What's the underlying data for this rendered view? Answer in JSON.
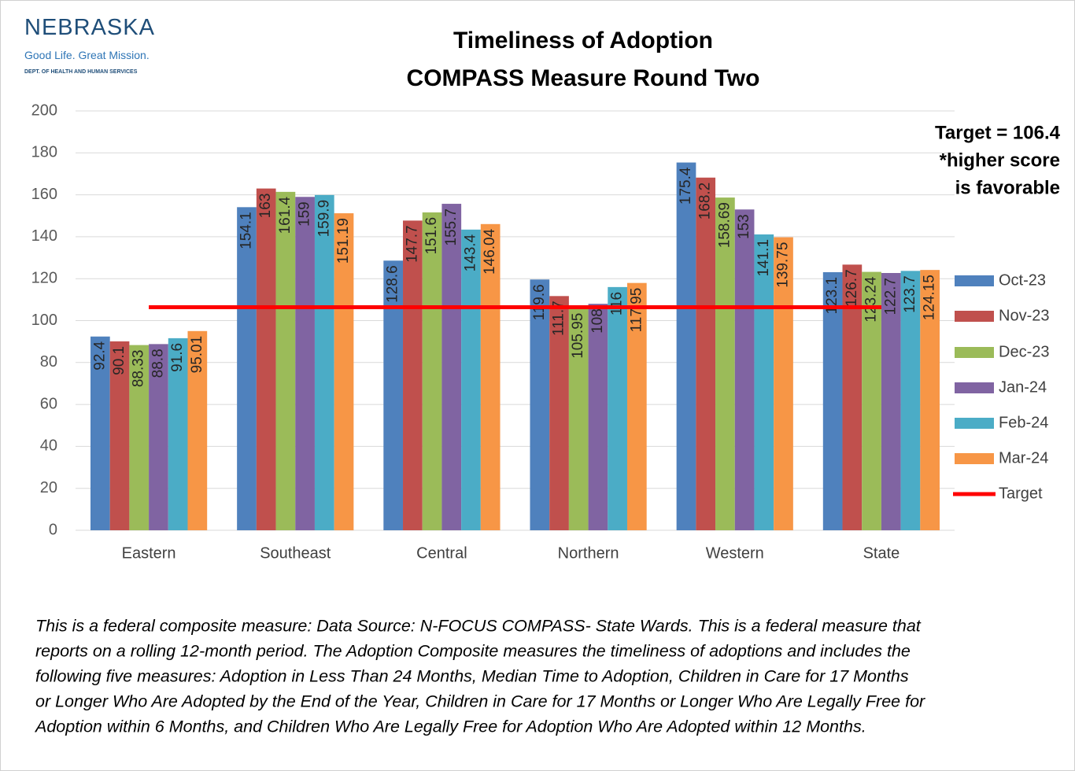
{
  "logo": {
    "name": "NEBRASKA",
    "tagline": "Good Life. Great Mission.",
    "dept": "DEPT. OF HEALTH AND HUMAN SERVICES"
  },
  "chart_data": {
    "type": "bar",
    "title": "Timeliness of Adoption",
    "subtitle": "COMPASS Measure Round Two",
    "categories": [
      "Eastern",
      "Southeast",
      "Central",
      "Northern",
      "Western",
      "State"
    ],
    "series": [
      {
        "name": "Oct-23",
        "color": "#4f81bd",
        "values": [
          92.4,
          154.1,
          128.6,
          119.6,
          175.4,
          123.1
        ]
      },
      {
        "name": "Nov-23",
        "color": "#c0504d",
        "values": [
          90.1,
          163,
          147.7,
          111.7,
          168.2,
          126.7
        ]
      },
      {
        "name": "Dec-23",
        "color": "#9bbb59",
        "values": [
          88.33,
          161.4,
          151.6,
          105.95,
          158.69,
          123.24
        ]
      },
      {
        "name": "Jan-24",
        "color": "#8064a2",
        "values": [
          88.8,
          159,
          155.7,
          108,
          153,
          122.7
        ]
      },
      {
        "name": "Feb-24",
        "color": "#4bacc6",
        "values": [
          91.6,
          159.9,
          143.4,
          116,
          141.1,
          123.7
        ]
      },
      {
        "name": "Mar-24",
        "color": "#f79646",
        "values": [
          95.01,
          151.19,
          146.04,
          117.95,
          139.75,
          124.15
        ]
      }
    ],
    "target": {
      "name": "Target",
      "value": 106.4,
      "color": "#ff0000"
    },
    "annotations": [
      "Target = 106.4",
      "*higher score",
      "is favorable"
    ],
    "ylim": [
      0,
      200
    ],
    "yticks": [
      0,
      20,
      40,
      60,
      80,
      100,
      120,
      140,
      160,
      180,
      200
    ],
    "grid": true,
    "legend": "right"
  },
  "footnote": [
    "This is a federal composite measure:  Data Source:  N-FOCUS COMPASS- State Wards.  This is a federal measure that",
    "reports on a rolling 12-month period. The Adoption Composite measures the timeliness of adoptions and includes the",
    "following five measures:  Adoption in Less Than 24 Months, Median Time to Adoption, Children in Care for 17 Months",
    "or Longer Who Are Adopted by the End of the Year, Children in Care for 17 Months or Longer Who Are Legally Free for",
    "Adoption within 6 Months, and Children Who Are Legally Free for Adoption Who Are Adopted within 12 Months."
  ]
}
